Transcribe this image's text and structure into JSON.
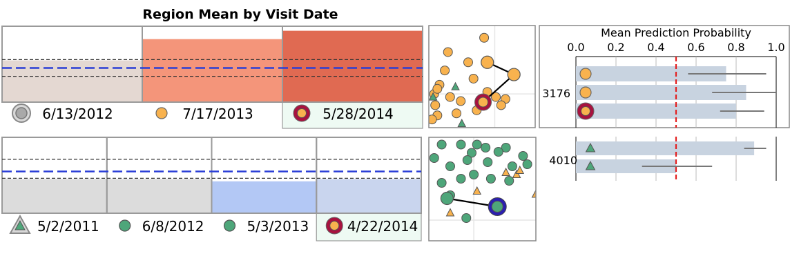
{
  "title": "Region Mean by Visit Date",
  "colors": {
    "orange": "#f8b24e",
    "green": "#4ea67a",
    "highlight_red": "#a8123f",
    "highlight_blue": "#2b1fb0",
    "mean_line": "#2a3ed6",
    "threshold": "#e32020",
    "bar": "#c8d3e0"
  },
  "chart_data": [
    {
      "type": "bar",
      "name": "patient-3176-region-means",
      "categories": [
        "6/13/2012",
        "7/17/2013",
        "5/28/2014"
      ],
      "values": [
        0.55,
        0.83,
        0.94
      ],
      "fill_colors": [
        "#e4d8d2",
        "#f4957a",
        "#e06a52"
      ],
      "mean_line": 0.45,
      "dashed_refs": [
        0.34,
        0.56
      ],
      "legend_markers": [
        "circle-gray",
        "circle-orange",
        "circle-highlight"
      ],
      "highlighted_index": 2
    },
    {
      "type": "bar",
      "name": "patient-4010-region-means",
      "categories": [
        "5/2/2011",
        "6/8/2012",
        "5/3/2013",
        "4/22/2014"
      ],
      "values": [
        0.45,
        0.45,
        0.42,
        0.45
      ],
      "fill_colors": [
        "#dcdcdc",
        "#dcdcdc",
        "#b3c8f5",
        "#c9d5ee"
      ],
      "mean_line": 0.55,
      "dashed_refs": [
        0.46,
        0.71
      ],
      "legend_markers": [
        "triangle-gray",
        "circle-green",
        "circle-green",
        "circle-highlight"
      ],
      "highlighted_index": 3
    },
    {
      "type": "scatter",
      "name": "scatter-3176",
      "points": [
        {
          "x": 0.52,
          "y": 0.88,
          "shape": "circle",
          "color": "orange"
        },
        {
          "x": 0.18,
          "y": 0.74,
          "shape": "circle",
          "color": "orange"
        },
        {
          "x": 0.37,
          "y": 0.64,
          "shape": "circle",
          "color": "orange"
        },
        {
          "x": 0.15,
          "y": 0.56,
          "shape": "circle",
          "color": "orange"
        },
        {
          "x": 0.42,
          "y": 0.48,
          "shape": "circle",
          "color": "orange"
        },
        {
          "x": 0.1,
          "y": 0.42,
          "shape": "circle",
          "color": "orange"
        },
        {
          "x": 0.05,
          "y": 0.33,
          "shape": "circle",
          "color": "orange"
        },
        {
          "x": 0.08,
          "y": 0.38,
          "shape": "circle",
          "color": "orange"
        },
        {
          "x": 0.25,
          "y": 0.4,
          "shape": "triangle",
          "color": "green"
        },
        {
          "x": 0.04,
          "y": 0.3,
          "shape": "triangle",
          "color": "green"
        },
        {
          "x": 0.2,
          "y": 0.3,
          "shape": "circle",
          "color": "orange"
        },
        {
          "x": 0.3,
          "y": 0.26,
          "shape": "circle",
          "color": "orange"
        },
        {
          "x": 0.55,
          "y": 0.35,
          "shape": "circle",
          "color": "orange"
        },
        {
          "x": 0.63,
          "y": 0.3,
          "shape": "circle",
          "color": "orange"
        },
        {
          "x": 0.72,
          "y": 0.28,
          "shape": "circle",
          "color": "orange"
        },
        {
          "x": 0.68,
          "y": 0.22,
          "shape": "circle",
          "color": "orange"
        },
        {
          "x": 0.26,
          "y": 0.14,
          "shape": "circle",
          "color": "orange"
        },
        {
          "x": 0.45,
          "y": 0.17,
          "shape": "circle",
          "color": "orange"
        },
        {
          "x": 0.08,
          "y": 0.12,
          "shape": "circle",
          "color": "orange"
        },
        {
          "x": 0.03,
          "y": 0.08,
          "shape": "circle",
          "color": "orange"
        },
        {
          "x": 0.31,
          "y": 0.04,
          "shape": "triangle",
          "color": "green"
        },
        {
          "x": 0.06,
          "y": 0.22,
          "shape": "circle",
          "color": "orange"
        }
      ],
      "trajectory": [
        {
          "x": 0.55,
          "y": 0.64,
          "shape": "circle-large",
          "color": "orange"
        },
        {
          "x": 0.8,
          "y": 0.52,
          "shape": "circle-large",
          "color": "orange"
        },
        {
          "x": 0.51,
          "y": 0.25,
          "shape": "circle-highlight",
          "color": "orange"
        }
      ]
    },
    {
      "type": "scatter",
      "name": "scatter-4010",
      "points": [
        {
          "x": 0.12,
          "y": 0.93,
          "shape": "circle",
          "color": "green"
        },
        {
          "x": 0.3,
          "y": 0.93,
          "shape": "circle",
          "color": "green"
        },
        {
          "x": 0.45,
          "y": 0.93,
          "shape": "circle",
          "color": "green"
        },
        {
          "x": 0.53,
          "y": 0.9,
          "shape": "circle",
          "color": "green"
        },
        {
          "x": 0.72,
          "y": 0.9,
          "shape": "circle",
          "color": "green"
        },
        {
          "x": 0.05,
          "y": 0.8,
          "shape": "circle",
          "color": "green"
        },
        {
          "x": 0.4,
          "y": 0.85,
          "shape": "circle",
          "color": "green"
        },
        {
          "x": 0.65,
          "y": 0.86,
          "shape": "circle",
          "color": "green"
        },
        {
          "x": 0.88,
          "y": 0.82,
          "shape": "circle",
          "color": "green"
        },
        {
          "x": 0.2,
          "y": 0.72,
          "shape": "circle",
          "color": "green"
        },
        {
          "x": 0.36,
          "y": 0.78,
          "shape": "circle",
          "color": "green"
        },
        {
          "x": 0.55,
          "y": 0.76,
          "shape": "circle",
          "color": "green"
        },
        {
          "x": 0.78,
          "y": 0.72,
          "shape": "circle",
          "color": "green"
        },
        {
          "x": 0.92,
          "y": 0.74,
          "shape": "circle",
          "color": "green"
        },
        {
          "x": 0.3,
          "y": 0.6,
          "shape": "circle",
          "color": "green"
        },
        {
          "x": 0.42,
          "y": 0.64,
          "shape": "circle",
          "color": "green"
        },
        {
          "x": 0.58,
          "y": 0.6,
          "shape": "circle",
          "color": "green"
        },
        {
          "x": 0.75,
          "y": 0.58,
          "shape": "circle",
          "color": "green"
        },
        {
          "x": 0.12,
          "y": 0.56,
          "shape": "circle",
          "color": "green"
        },
        {
          "x": 0.82,
          "y": 0.64,
          "shape": "triangle",
          "color": "orange"
        },
        {
          "x": 0.85,
          "y": 0.68,
          "shape": "triangle",
          "color": "orange"
        },
        {
          "x": 0.72,
          "y": 0.66,
          "shape": "triangle",
          "color": "orange"
        },
        {
          "x": 0.45,
          "y": 0.48,
          "shape": "triangle",
          "color": "orange"
        },
        {
          "x": 0.2,
          "y": 0.44,
          "shape": "circle",
          "color": "green"
        },
        {
          "x": 0.2,
          "y": 0.27,
          "shape": "triangle",
          "color": "orange"
        },
        {
          "x": 0.35,
          "y": 0.22,
          "shape": "circle",
          "color": "green"
        },
        {
          "x": 1.0,
          "y": 0.45,
          "shape": "triangle",
          "color": "orange"
        }
      ],
      "trajectory": [
        {
          "x": 0.17,
          "y": 0.41,
          "shape": "circle-large",
          "color": "green"
        },
        {
          "x": 0.64,
          "y": 0.33,
          "shape": "circle-highlight-blue",
          "color": "green"
        }
      ]
    },
    {
      "type": "bar",
      "name": "mean-prediction-probability-3176",
      "orientation": "horizontal",
      "title": "Mean Prediction Probability",
      "xlim": [
        0,
        1
      ],
      "xticks": [
        "0.0",
        "0.2",
        "0.4",
        "0.6",
        "0.8",
        "1.0"
      ],
      "threshold": 0.5,
      "group_label": "3176",
      "bars": [
        {
          "value": 0.75,
          "err_low": 0.56,
          "err_high": 0.95,
          "marker": "circle-orange"
        },
        {
          "value": 0.85,
          "err_low": 0.68,
          "err_high": 1.0,
          "marker": "circle-orange"
        },
        {
          "value": 0.8,
          "err_low": 0.72,
          "err_high": 0.94,
          "marker": "circle-highlight"
        }
      ]
    },
    {
      "type": "bar",
      "name": "mean-prediction-probability-4010",
      "orientation": "horizontal",
      "xlim": [
        0,
        1
      ],
      "threshold": 0.5,
      "group_label": "4010",
      "bars": [
        {
          "value": 0.89,
          "err_low": 0.84,
          "err_high": 0.95,
          "marker": "triangle-green"
        },
        {
          "value": 0.5,
          "err_low": 0.33,
          "err_high": 0.68,
          "marker": "triangle-green"
        }
      ]
    }
  ]
}
